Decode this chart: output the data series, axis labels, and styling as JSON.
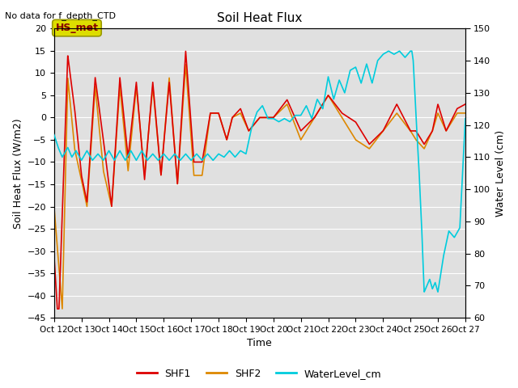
{
  "title": "Soil Heat Flux",
  "top_left_text": "No data for f_depth_CTD",
  "xlabel": "Time",
  "ylabel_left": "Soil Heat Flux (W/m2)",
  "ylabel_right": "Water Level (cm)",
  "ylim_left": [
    -45,
    20
  ],
  "ylim_right": [
    60,
    150
  ],
  "yticks_left": [
    -45,
    -40,
    -35,
    -30,
    -25,
    -20,
    -15,
    -10,
    -5,
    0,
    5,
    10,
    15,
    20
  ],
  "yticks_right": [
    60,
    70,
    80,
    90,
    100,
    110,
    120,
    130,
    140,
    150
  ],
  "xtick_labels": [
    "Oct 12",
    "Oct 13",
    "Oct 14",
    "Oct 15",
    "Oct 16",
    "Oct 17",
    "Oct 18",
    "Oct 19",
    "Oct 20",
    "Oct 21",
    "Oct 22",
    "Oct 23",
    "Oct 24",
    "Oct 25",
    "Oct 26",
    "Oct 27"
  ],
  "shf1_color": "#dd0000",
  "shf2_color": "#dd8800",
  "water_color": "#00ccdd",
  "fig_bg_color": "#ffffff",
  "axes_bg_color": "#e0e0e0",
  "grid_color": "#ffffff",
  "annotation_box_facecolor": "#dddd00",
  "annotation_box_edgecolor": "#999900",
  "annotation_text": "HS_met",
  "annotation_text_color": "#880000",
  "legend_labels": [
    "SHF1",
    "SHF2",
    "WaterLevel_cm"
  ],
  "shf1_x": [
    0.0,
    0.12,
    0.18,
    0.5,
    0.75,
    1.0,
    1.2,
    1.5,
    1.8,
    2.1,
    2.4,
    2.7,
    3.0,
    3.3,
    3.6,
    3.9,
    4.2,
    4.5,
    4.8,
    5.1,
    5.4,
    5.7,
    6.0,
    6.3,
    6.5,
    6.8,
    7.1,
    7.5,
    8.0,
    8.5,
    9.0,
    9.5,
    10.0,
    10.5,
    11.0,
    11.5,
    12.0,
    12.5,
    13.0,
    13.2,
    13.5,
    13.8,
    14.0,
    14.3,
    14.7,
    15.0
  ],
  "shf1_y": [
    -31,
    -43,
    -43,
    14,
    2,
    -13,
    -19,
    9,
    -5,
    -20,
    9,
    -9,
    8,
    -14,
    8,
    -13,
    8,
    -15,
    15,
    -10,
    -10,
    1,
    1,
    -5,
    0,
    2,
    -3,
    0,
    0,
    4,
    -3,
    0,
    5,
    1,
    -1,
    -6,
    -3,
    3,
    -3,
    -3,
    -6,
    -3,
    3,
    -3,
    2,
    3
  ],
  "shf2_x": [
    0.0,
    0.3,
    0.5,
    0.75,
    1.0,
    1.2,
    1.5,
    1.8,
    2.1,
    2.4,
    2.7,
    3.0,
    3.3,
    3.6,
    3.9,
    4.2,
    4.5,
    4.8,
    5.1,
    5.4,
    5.7,
    6.0,
    6.3,
    6.5,
    6.8,
    7.1,
    7.5,
    8.0,
    8.5,
    9.0,
    9.5,
    10.0,
    10.5,
    11.0,
    11.5,
    12.0,
    12.5,
    13.0,
    13.2,
    13.5,
    13.8,
    14.0,
    14.3,
    14.7,
    15.0
  ],
  "shf2_y": [
    -20,
    -43,
    9,
    -7,
    -14,
    -20,
    7,
    -12,
    -20,
    7,
    -12,
    7,
    -13,
    7,
    -13,
    9,
    -15,
    12,
    -13,
    -13,
    1,
    1,
    -5,
    0,
    1,
    -3,
    0,
    0,
    3,
    -5,
    0,
    5,
    0,
    -5,
    -7,
    -3,
    1,
    -3,
    -5,
    -7,
    -3,
    1,
    -3,
    1,
    1
  ],
  "water_x": [
    0.0,
    0.15,
    0.3,
    0.5,
    0.65,
    0.8,
    1.0,
    1.2,
    1.4,
    1.6,
    1.8,
    2.0,
    2.2,
    2.4,
    2.6,
    2.8,
    3.0,
    3.2,
    3.4,
    3.6,
    3.8,
    4.0,
    4.2,
    4.4,
    4.6,
    4.8,
    5.0,
    5.2,
    5.4,
    5.6,
    5.8,
    6.0,
    6.2,
    6.4,
    6.6,
    6.8,
    7.0,
    7.2,
    7.4,
    7.6,
    7.8,
    8.0,
    8.2,
    8.4,
    8.6,
    8.8,
    9.0,
    9.2,
    9.4,
    9.6,
    9.8,
    10.0,
    10.2,
    10.4,
    10.6,
    10.8,
    11.0,
    11.2,
    11.4,
    11.6,
    11.8,
    12.0,
    12.2,
    12.4,
    12.6,
    12.8,
    13.0,
    13.05,
    13.1,
    13.2,
    13.3,
    13.4,
    13.5,
    13.6,
    13.7,
    13.8,
    13.9,
    14.0,
    14.2,
    14.4,
    14.6,
    14.8,
    15.0
  ],
  "water_y": [
    117,
    113,
    110,
    113,
    110,
    112,
    109,
    112,
    109,
    111,
    109,
    112,
    109,
    112,
    109,
    112,
    109,
    112,
    109,
    111,
    109,
    111,
    109,
    111,
    109,
    111,
    109,
    111,
    109,
    111,
    109,
    111,
    110,
    112,
    110,
    112,
    111,
    119,
    124,
    126,
    122,
    122,
    121,
    122,
    121,
    123,
    123,
    126,
    122,
    128,
    125,
    135,
    128,
    134,
    130,
    137,
    138,
    133,
    139,
    133,
    140,
    142,
    143,
    142,
    143,
    141,
    143,
    143,
    140,
    123,
    108,
    90,
    68,
    70,
    72,
    69,
    71,
    68,
    79,
    87,
    85,
    88,
    122
  ]
}
